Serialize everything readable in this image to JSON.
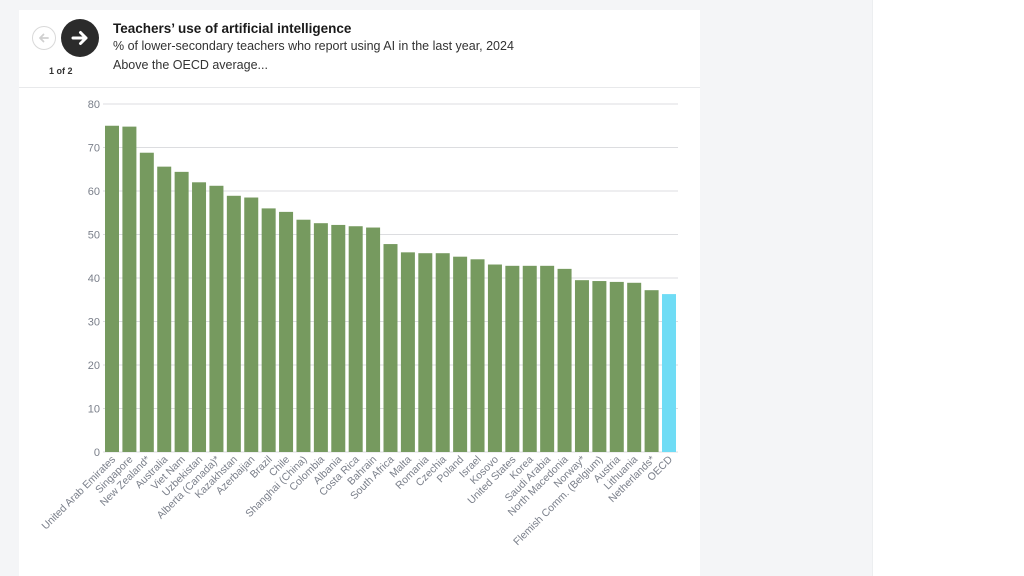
{
  "header": {
    "title": "Teachers’ use of artificial intelligence",
    "subtitle": "% of lower-secondary teachers who report using AI in the last year, 2024",
    "note": "Above the OECD average...",
    "pager": "1 of 2",
    "prev_icon": "arrow-left-icon",
    "next_icon": "arrow-right-icon"
  },
  "colors": {
    "bar": "#769a5f",
    "highlight": "#6fdcf5",
    "grid": "#dcdde0",
    "tick_text": "#7a7f8a"
  },
  "chart_data": {
    "type": "bar",
    "title": "Teachers’ use of artificial intelligence",
    "subtitle": "% of lower-secondary teachers who report using AI in the last year, 2024",
    "xlabel": "",
    "ylabel": "",
    "ylim": [
      0,
      80
    ],
    "yticks": [
      0,
      10,
      20,
      30,
      40,
      50,
      60,
      70,
      80
    ],
    "grid": true,
    "legend": "none",
    "highlight_category": "OECD",
    "categories": [
      "United Arab Emirates",
      "Singapore",
      "New Zealand*",
      "Australia",
      "Viet Nam",
      "Uzbekistan",
      "Alberta (Canada)*",
      "Kazakhstan",
      "Azerbaijan",
      "Brazil",
      "Chile",
      "Shanghai (China)",
      "Colombia",
      "Albania",
      "Costa Rica",
      "Bahrain",
      "South Africa",
      "Malta",
      "Romania",
      "Czechia",
      "Poland",
      "Israel",
      "Kosovo",
      "United States",
      "Korea",
      "Saudi Arabia",
      "North Macedonia",
      "Norway*",
      "Flemish Comm. (Belgium)",
      "Austria",
      "Lithuania",
      "Netherlands*",
      "OECD"
    ],
    "values": [
      75,
      74.8,
      68.8,
      65.6,
      64.4,
      62,
      61.2,
      58.9,
      58.5,
      56,
      55.2,
      53.4,
      52.6,
      52.2,
      51.9,
      51.6,
      47.8,
      45.9,
      45.7,
      45.7,
      44.9,
      44.3,
      43.1,
      42.8,
      42.8,
      42.8,
      42.1,
      39.5,
      39.3,
      39.1,
      38.9,
      37.2,
      36.3
    ]
  }
}
